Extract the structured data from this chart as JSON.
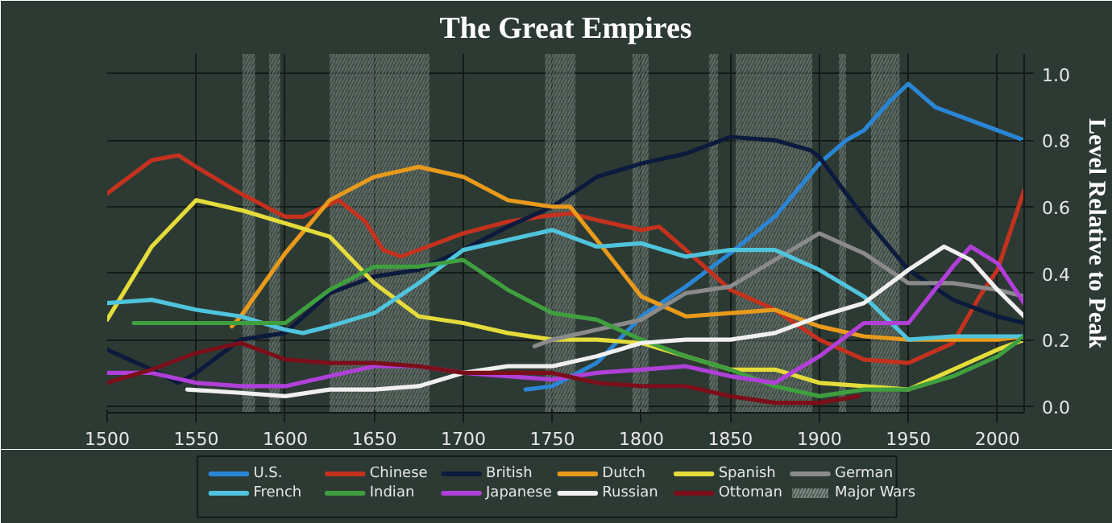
{
  "chart_data": {
    "type": "line",
    "title": "The Great Empires",
    "ylabel": "Level Relative to Peak",
    "xlim": [
      1500,
      2015
    ],
    "ylim": [
      -0.02,
      1.06
    ],
    "xticks": [
      1500,
      1550,
      1600,
      1650,
      1700,
      1750,
      1800,
      1850,
      1900,
      1950,
      2000
    ],
    "yticks": [
      {
        "value": 0,
        "label": "0.0"
      },
      {
        "value": 0.2,
        "label": "0.2"
      },
      {
        "value": 0.4,
        "label": "0.4"
      },
      {
        "value": 0.6,
        "label": "0.6"
      },
      {
        "value": 0.8,
        "label": "0.8"
      },
      {
        "value": 1,
        "label": "1.0"
      }
    ],
    "grid": true,
    "legend": "bottom",
    "line_style": "solid",
    "series": [
      {
        "name": "U.S.",
        "color": "#2a86d4",
        "x": [
          1735,
          1750,
          1775,
          1800,
          1825,
          1850,
          1875,
          1900,
          1915,
          1925,
          1940,
          1950,
          1965,
          1975,
          1990,
          2000,
          2015
        ],
        "values": [
          0.05,
          0.06,
          0.13,
          0.27,
          0.36,
          0.46,
          0.57,
          0.73,
          0.8,
          0.83,
          0.92,
          0.97,
          0.9,
          0.88,
          0.85,
          0.83,
          0.8
        ]
      },
      {
        "name": "Chinese",
        "color": "#c4321e",
        "x": [
          1500,
          1525,
          1540,
          1550,
          1575,
          1600,
          1610,
          1630,
          1645,
          1655,
          1665,
          1700,
          1725,
          1750,
          1760,
          1775,
          1800,
          1810,
          1825,
          1850,
          1875,
          1900,
          1925,
          1950,
          1975,
          1990,
          2000,
          2015
        ],
        "values": [
          0.64,
          0.74,
          0.755,
          0.72,
          0.64,
          0.57,
          0.57,
          0.62,
          0.555,
          0.47,
          0.45,
          0.52,
          0.555,
          0.575,
          0.58,
          0.56,
          0.53,
          0.54,
          0.47,
          0.35,
          0.29,
          0.2,
          0.14,
          0.13,
          0.19,
          0.33,
          0.41,
          0.65
        ]
      },
      {
        "name": "British",
        "color": "#0c1a3d",
        "x": [
          1500,
          1525,
          1540,
          1550,
          1575,
          1600,
          1625,
          1650,
          1675,
          1700,
          1725,
          1750,
          1775,
          1800,
          1825,
          1850,
          1875,
          1895,
          1900,
          1915,
          1925,
          1950,
          1975,
          2000,
          2015
        ],
        "values": [
          0.17,
          0.11,
          0.07,
          0.1,
          0.2,
          0.22,
          0.34,
          0.39,
          0.41,
          0.47,
          0.54,
          0.6,
          0.69,
          0.73,
          0.76,
          0.81,
          0.8,
          0.77,
          0.75,
          0.64,
          0.57,
          0.41,
          0.32,
          0.27,
          0.25
        ]
      },
      {
        "name": "Dutch",
        "color": "#e89a1c",
        "x": [
          1570,
          1575,
          1600,
          1625,
          1650,
          1675,
          1700,
          1725,
          1750,
          1760,
          1775,
          1800,
          1825,
          1850,
          1875,
          1900,
          1925,
          1950,
          1975,
          2000,
          2015
        ],
        "values": [
          0.24,
          0.27,
          0.46,
          0.62,
          0.69,
          0.72,
          0.69,
          0.62,
          0.6,
          0.6,
          0.5,
          0.33,
          0.27,
          0.28,
          0.29,
          0.24,
          0.21,
          0.2,
          0.2,
          0.2,
          0.21
        ]
      },
      {
        "name": "Spanish",
        "color": "#e4dc3a",
        "x": [
          1500,
          1525,
          1550,
          1575,
          1600,
          1625,
          1650,
          1675,
          1700,
          1725,
          1750,
          1775,
          1800,
          1825,
          1850,
          1875,
          1900,
          1925,
          1950,
          1975,
          2000,
          2015
        ],
        "values": [
          0.26,
          0.48,
          0.62,
          0.59,
          0.55,
          0.51,
          0.37,
          0.27,
          0.25,
          0.22,
          0.2,
          0.2,
          0.19,
          0.15,
          0.11,
          0.11,
          0.07,
          0.06,
          0.05,
          0.11,
          0.17,
          0.2
        ]
      },
      {
        "name": "German",
        "color": "#8a8a8a",
        "x": [
          1740,
          1750,
          1775,
          1800,
          1825,
          1850,
          1875,
          1900,
          1925,
          1950,
          1975,
          2000,
          2015
        ],
        "values": [
          0.18,
          0.2,
          0.23,
          0.26,
          0.34,
          0.36,
          0.44,
          0.52,
          0.46,
          0.37,
          0.37,
          0.35,
          0.33
        ]
      },
      {
        "name": "French",
        "color": "#4fc4dc",
        "x": [
          1500,
          1525,
          1550,
          1575,
          1600,
          1610,
          1625,
          1650,
          1675,
          1700,
          1725,
          1750,
          1775,
          1800,
          1825,
          1850,
          1875,
          1900,
          1925,
          1950,
          1975,
          2000,
          2015
        ],
        "values": [
          0.31,
          0.32,
          0.29,
          0.27,
          0.23,
          0.22,
          0.24,
          0.28,
          0.37,
          0.47,
          0.5,
          0.53,
          0.48,
          0.49,
          0.45,
          0.47,
          0.47,
          0.41,
          0.33,
          0.2,
          0.21,
          0.21,
          0.21
        ]
      },
      {
        "name": "Indian",
        "color": "#3f9f3f",
        "x": [
          1515,
          1550,
          1575,
          1600,
          1625,
          1650,
          1675,
          1700,
          1725,
          1750,
          1775,
          1800,
          1825,
          1850,
          1875,
          1900,
          1925,
          1950,
          1975,
          2000,
          2015
        ],
        "values": [
          0.25,
          0.25,
          0.25,
          0.25,
          0.35,
          0.42,
          0.42,
          0.44,
          0.35,
          0.28,
          0.26,
          0.2,
          0.15,
          0.11,
          0.06,
          0.03,
          0.05,
          0.05,
          0.09,
          0.15,
          0.21
        ]
      },
      {
        "name": "Japanese",
        "color": "#b040d8",
        "x": [
          1500,
          1525,
          1550,
          1575,
          1600,
          1625,
          1650,
          1675,
          1700,
          1725,
          1750,
          1775,
          1800,
          1825,
          1850,
          1875,
          1900,
          1925,
          1950,
          1975,
          1985,
          2000,
          2015
        ],
        "values": [
          0.1,
          0.1,
          0.07,
          0.06,
          0.06,
          0.09,
          0.12,
          0.12,
          0.1,
          0.09,
          0.08,
          0.1,
          0.11,
          0.12,
          0.09,
          0.07,
          0.15,
          0.25,
          0.25,
          0.42,
          0.48,
          0.43,
          0.31
        ]
      },
      {
        "name": "Russian",
        "color": "#f0f0f0",
        "x": [
          1545,
          1575,
          1600,
          1625,
          1650,
          1675,
          1700,
          1725,
          1750,
          1775,
          1800,
          1825,
          1850,
          1875,
          1900,
          1925,
          1950,
          1970,
          1985,
          2000,
          2015
        ],
        "values": [
          0.05,
          0.04,
          0.03,
          0.05,
          0.05,
          0.06,
          0.1,
          0.12,
          0.12,
          0.15,
          0.19,
          0.2,
          0.2,
          0.22,
          0.27,
          0.31,
          0.41,
          0.48,
          0.44,
          0.35,
          0.27
        ]
      },
      {
        "name": "Ottoman",
        "color": "#7a0f1a",
        "x": [
          1500,
          1525,
          1550,
          1575,
          1600,
          1625,
          1650,
          1675,
          1700,
          1725,
          1750,
          1775,
          1800,
          1825,
          1850,
          1875,
          1900,
          1922
        ],
        "values": [
          0.07,
          0.11,
          0.16,
          0.19,
          0.14,
          0.13,
          0.13,
          0.12,
          0.1,
          0.1,
          0.1,
          0.07,
          0.06,
          0.06,
          0.03,
          0.01,
          0.01,
          0.03
        ]
      }
    ],
    "bands": [
      {
        "axis": "x",
        "from": 1576,
        "to": 1583,
        "label": "Major Wars",
        "color": "#8a948e"
      },
      {
        "axis": "x",
        "from": 1591,
        "to": 1597,
        "color": "#8a948e"
      },
      {
        "axis": "x",
        "from": 1625,
        "to": 1681,
        "color": "#8a948e"
      },
      {
        "axis": "x",
        "from": 1746,
        "to": 1763,
        "color": "#8a948e"
      },
      {
        "axis": "x",
        "from": 1795,
        "to": 1804,
        "color": "#8a948e"
      },
      {
        "axis": "x",
        "from": 1838,
        "to": 1843,
        "color": "#8a948e"
      },
      {
        "axis": "x",
        "from": 1853,
        "to": 1896,
        "color": "#8a948e"
      },
      {
        "axis": "x",
        "from": 1911,
        "to": 1915,
        "color": "#8a948e"
      },
      {
        "axis": "x",
        "from": 1929,
        "to": 1945,
        "color": "#8a948e"
      }
    ]
  }
}
